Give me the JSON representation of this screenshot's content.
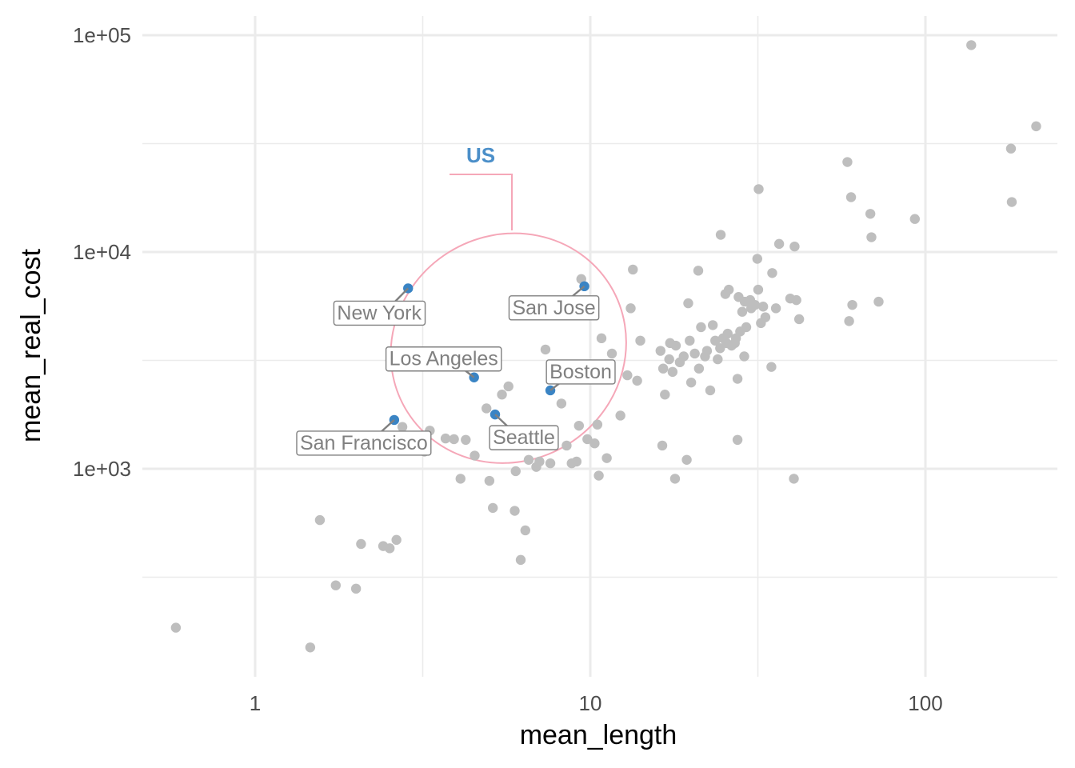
{
  "chart_data": {
    "type": "scatter",
    "title": "",
    "xlabel": "mean_length",
    "ylabel": "mean_real_cost",
    "x_scale": "log10",
    "y_scale": "log10",
    "xlim": [
      0.45,
      280
    ],
    "ylim": [
      120,
      125000
    ],
    "x_ticks": [
      {
        "value": 1,
        "label": "1"
      },
      {
        "value": 10,
        "label": "10"
      },
      {
        "value": 100,
        "label": "100"
      }
    ],
    "y_ticks": [
      {
        "value": 1000,
        "label": "1e+03"
      },
      {
        "value": 10000,
        "label": "1e+04"
      },
      {
        "value": 100000,
        "label": "1e+05"
      }
    ],
    "grid": true,
    "legend": "none",
    "colors": {
      "background_points": "#bebebe",
      "highlight_points": "#3a84c4",
      "annotation": "#f5a7b8",
      "group_label": "#4b8fc9",
      "label_text": "#808080",
      "grid": "#ebebeb"
    },
    "annotation": {
      "label": "US",
      "ellipse_center": [
        5.7,
        3600
      ],
      "ellipse_rx_decades": 0.35,
      "ellipse_ry_decades": 0.55,
      "ellipse_tilt_deg": -32
    },
    "highlighted": [
      {
        "name": "New York",
        "x": 2.86,
        "y": 6800
      },
      {
        "name": "San Jose",
        "x": 9.6,
        "y": 6950
      },
      {
        "name": "Los Angeles",
        "x": 4.5,
        "y": 2640
      },
      {
        "name": "Boston",
        "x": 7.6,
        "y": 2300
      },
      {
        "name": "San Francisco",
        "x": 2.6,
        "y": 1680
      },
      {
        "name": "Seattle",
        "x": 5.2,
        "y": 1780
      }
    ],
    "series": [
      {
        "points": [
          [
            0.58,
            185
          ],
          [
            1.46,
            150
          ],
          [
            1.56,
            580
          ],
          [
            1.74,
            290
          ],
          [
            2.0,
            280
          ],
          [
            2.07,
            450
          ],
          [
            2.41,
            440
          ],
          [
            2.52,
            430
          ],
          [
            2.64,
            470
          ],
          [
            2.75,
            1560
          ],
          [
            3.07,
            1260
          ],
          [
            3.2,
            1200
          ],
          [
            3.32,
            1500
          ],
          [
            3.7,
            1380
          ],
          [
            3.92,
            1370
          ],
          [
            4.1,
            900
          ],
          [
            4.25,
            1360
          ],
          [
            4.52,
            1150
          ],
          [
            4.9,
            1900
          ],
          [
            5.0,
            880
          ],
          [
            5.12,
            660
          ],
          [
            5.35,
            1480
          ],
          [
            5.45,
            2200
          ],
          [
            5.7,
            2400
          ],
          [
            5.95,
            640
          ],
          [
            5.99,
            975
          ],
          [
            6.2,
            380
          ],
          [
            6.4,
            520
          ],
          [
            6.55,
            1100
          ],
          [
            6.9,
            1020
          ],
          [
            7.05,
            1080
          ],
          [
            7.6,
            1060
          ],
          [
            7.35,
            3550
          ],
          [
            8.2,
            2000
          ],
          [
            8.5,
            1280
          ],
          [
            8.8,
            1060
          ],
          [
            9.1,
            1080
          ],
          [
            9.25,
            1580
          ],
          [
            9.4,
            7500
          ],
          [
            9.8,
            1370
          ],
          [
            10.3,
            1310
          ],
          [
            10.5,
            1600
          ],
          [
            10.6,
            930
          ],
          [
            10.8,
            4000
          ],
          [
            11.2,
            1120
          ],
          [
            11.6,
            3400
          ],
          [
            12.3,
            1760
          ],
          [
            12.9,
            2700
          ],
          [
            13.4,
            8300
          ],
          [
            13.2,
            5500
          ],
          [
            13.8,
            2550
          ],
          [
            14.1,
            3900
          ],
          [
            16.2,
            3500
          ],
          [
            16.5,
            2900
          ],
          [
            16.7,
            2200
          ],
          [
            16.4,
            1280
          ],
          [
            17.2,
            3200
          ],
          [
            17.6,
            2800
          ],
          [
            17.3,
            3800
          ],
          [
            17.9,
            900
          ],
          [
            18.0,
            3700
          ],
          [
            18.5,
            3100
          ],
          [
            19.0,
            3300
          ],
          [
            19.4,
            1100
          ],
          [
            19.6,
            5800
          ],
          [
            19.8,
            3900
          ],
          [
            20.0,
            2500
          ],
          [
            20.5,
            3400
          ],
          [
            21.0,
            8200
          ],
          [
            21.1,
            2900
          ],
          [
            21.4,
            4500
          ],
          [
            22.0,
            3300
          ],
          [
            22.3,
            3500
          ],
          [
            22.8,
            2300
          ],
          [
            23.2,
            4600
          ],
          [
            23.6,
            3900
          ],
          [
            24.0,
            3200
          ],
          [
            24.4,
            3600
          ],
          [
            24.5,
            12000
          ],
          [
            24.9,
            4000
          ],
          [
            25.3,
            6400
          ],
          [
            25.5,
            3800
          ],
          [
            25.7,
            4200
          ],
          [
            25.9,
            6700
          ],
          [
            26.4,
            3700
          ],
          [
            27.0,
            3800
          ],
          [
            27.2,
            4000
          ],
          [
            27.5,
            1360
          ],
          [
            27.7,
            6200
          ],
          [
            27.5,
            2600
          ],
          [
            28.0,
            4300
          ],
          [
            28.4,
            5300
          ],
          [
            28.9,
            5900
          ],
          [
            28.8,
            3300
          ],
          [
            29.2,
            4500
          ],
          [
            30.0,
            6000
          ],
          [
            30.2,
            5500
          ],
          [
            31.0,
            5700
          ],
          [
            31.7,
            6700
          ],
          [
            31.5,
            9300
          ],
          [
            31.8,
            19500
          ],
          [
            32.3,
            4700
          ],
          [
            32.8,
            5600
          ],
          [
            33.3,
            5000
          ],
          [
            34.7,
            2950
          ],
          [
            34.9,
            8000
          ],
          [
            35.8,
            5500
          ],
          [
            36.6,
            10900
          ],
          [
            39.5,
            6100
          ],
          [
            40.5,
            900
          ],
          [
            40.7,
            10600
          ],
          [
            41.2,
            6000
          ],
          [
            42.0,
            4900
          ],
          [
            58.5,
            26000
          ],
          [
            60.0,
            17900
          ],
          [
            59.2,
            4800
          ],
          [
            60.5,
            5700
          ],
          [
            68.5,
            15000
          ],
          [
            69.0,
            11700
          ],
          [
            72.5,
            5900
          ],
          [
            93.0,
            14200
          ],
          [
            137.0,
            90000
          ],
          [
            180.0,
            30000
          ],
          [
            181.0,
            17000
          ],
          [
            214.0,
            38000
          ]
        ]
      }
    ]
  }
}
